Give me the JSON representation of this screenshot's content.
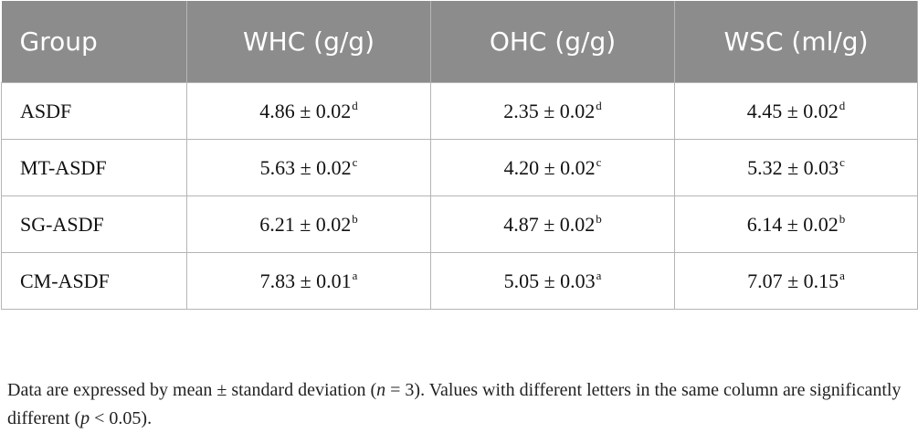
{
  "table": {
    "headers": [
      "Group",
      "WHC (g/g)",
      "OHC (g/g)",
      "WSC (ml/g)"
    ],
    "rows": [
      {
        "group": "ASDF",
        "cells": [
          {
            "value": "4.86 ± 0.02",
            "sup": "d"
          },
          {
            "value": "2.35 ± 0.02",
            "sup": "d"
          },
          {
            "value": "4.45 ± 0.02",
            "sup": "d"
          }
        ]
      },
      {
        "group": "MT-ASDF",
        "cells": [
          {
            "value": "5.63 ± 0.02",
            "sup": "c"
          },
          {
            "value": "4.20 ± 0.02",
            "sup": "c"
          },
          {
            "value": "5.32 ± 0.03",
            "sup": "c"
          }
        ]
      },
      {
        "group": "SG-ASDF",
        "cells": [
          {
            "value": "6.21 ± 0.02",
            "sup": "b"
          },
          {
            "value": "4.87 ± 0.02",
            "sup": "b"
          },
          {
            "value": "6.14 ± 0.02",
            "sup": "b"
          }
        ]
      },
      {
        "group": "CM-ASDF",
        "cells": [
          {
            "value": "7.83 ± 0.01",
            "sup": "a"
          },
          {
            "value": "5.05 ± 0.03",
            "sup": "a"
          },
          {
            "value": "7.07 ± 0.15",
            "sup": "a"
          }
        ]
      }
    ]
  },
  "footnote": {
    "part1": "Data are expressed by mean ± standard deviation (",
    "n_symbol": "n",
    "part2": " = 3). Values with different letters in the same column are significantly different (",
    "p_symbol": "p",
    "part3": " < 0.05)."
  }
}
